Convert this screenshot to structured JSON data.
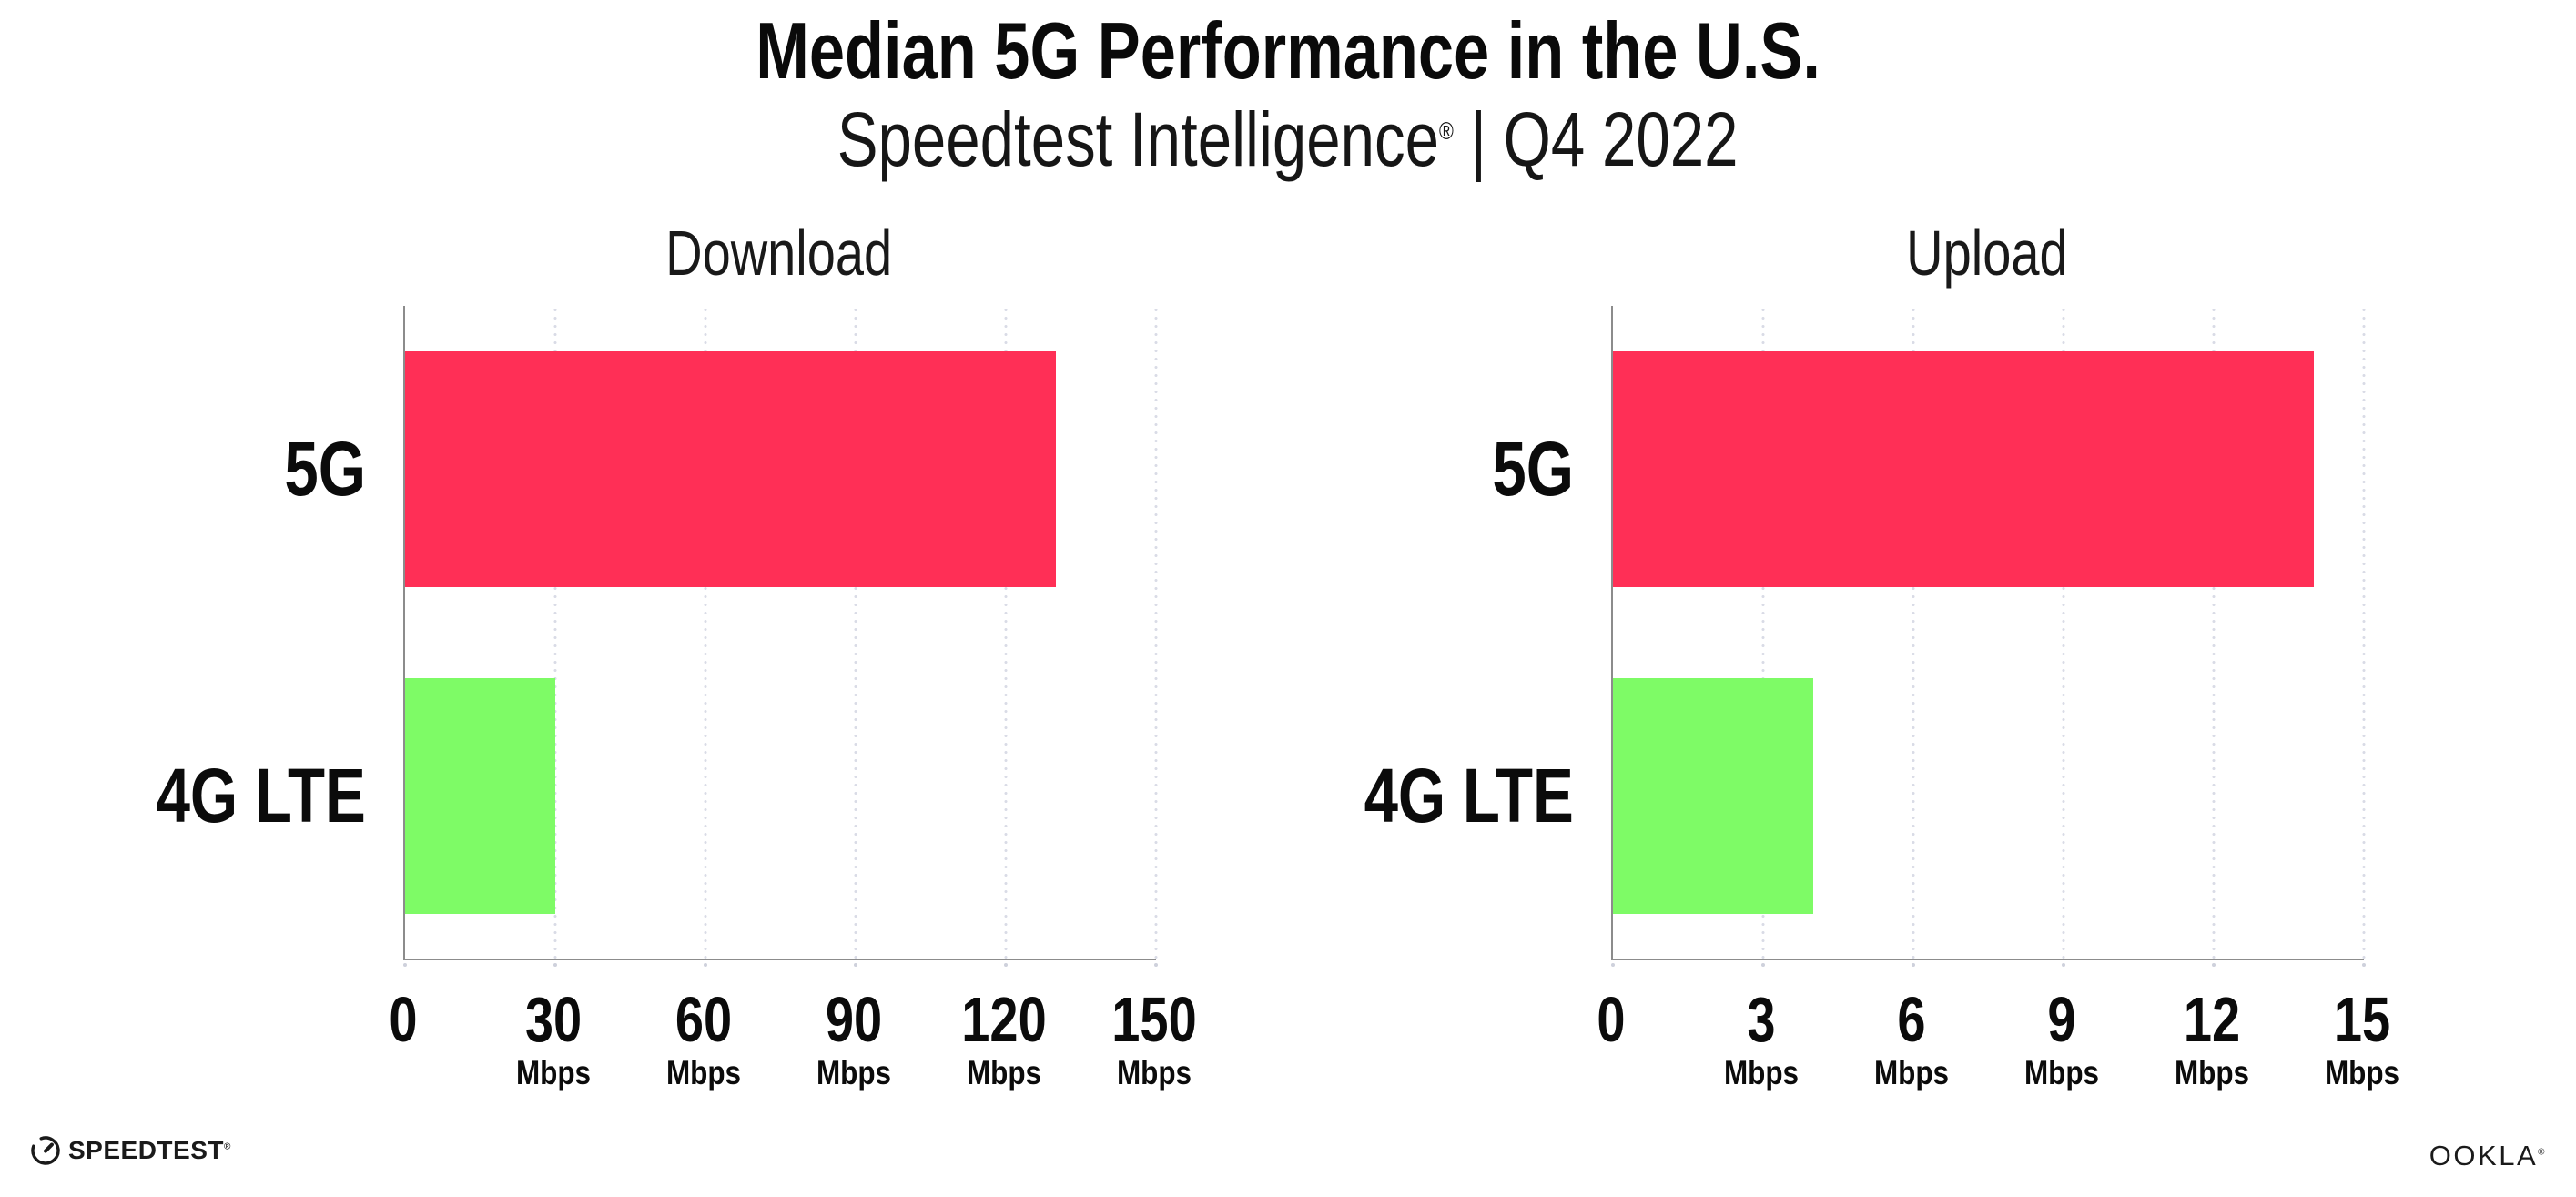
{
  "header": {
    "title": "Median 5G Performance in the U.S.",
    "subtitle_brand": "Speedtest Intelligence",
    "subtitle_reg": "®",
    "subtitle_rest": " | Q4 2022"
  },
  "chart_data": [
    {
      "type": "bar",
      "orientation": "horizontal",
      "title": "Download",
      "categories": [
        "5G",
        "4G LTE"
      ],
      "values": [
        130,
        30
      ],
      "unit": "Mbps",
      "xlim": [
        0,
        150
      ],
      "xticks": [
        0,
        30,
        60,
        90,
        120,
        150
      ],
      "xtick_unit": "Mbps",
      "bar_colors": [
        "#FF2F56",
        "#7EFB66"
      ],
      "grid": "vertical dotted gridlines at ticks",
      "legend": "none"
    },
    {
      "type": "bar",
      "orientation": "horizontal",
      "title": "Upload",
      "categories": [
        "5G",
        "4G LTE"
      ],
      "values": [
        14,
        4
      ],
      "unit": "Mbps",
      "xlim": [
        0,
        15
      ],
      "xticks": [
        0,
        3,
        6,
        9,
        12,
        15
      ],
      "xtick_unit": "Mbps",
      "bar_colors": [
        "#FF2F56",
        "#7EFB66"
      ],
      "grid": "vertical dotted gridlines at ticks",
      "legend": "none"
    }
  ],
  "footer": {
    "speedtest_label": "SPEEDTEST",
    "speedtest_reg": "®",
    "ookla_label": "OOKLA",
    "ookla_reg": "®"
  },
  "colors": {
    "bar_5g": "#FF2F56",
    "bar_4g_lte": "#7EFB66",
    "axis": "#8C8C8C",
    "grid_dot": "#D9DBE6",
    "text": "#0B0B0B"
  }
}
